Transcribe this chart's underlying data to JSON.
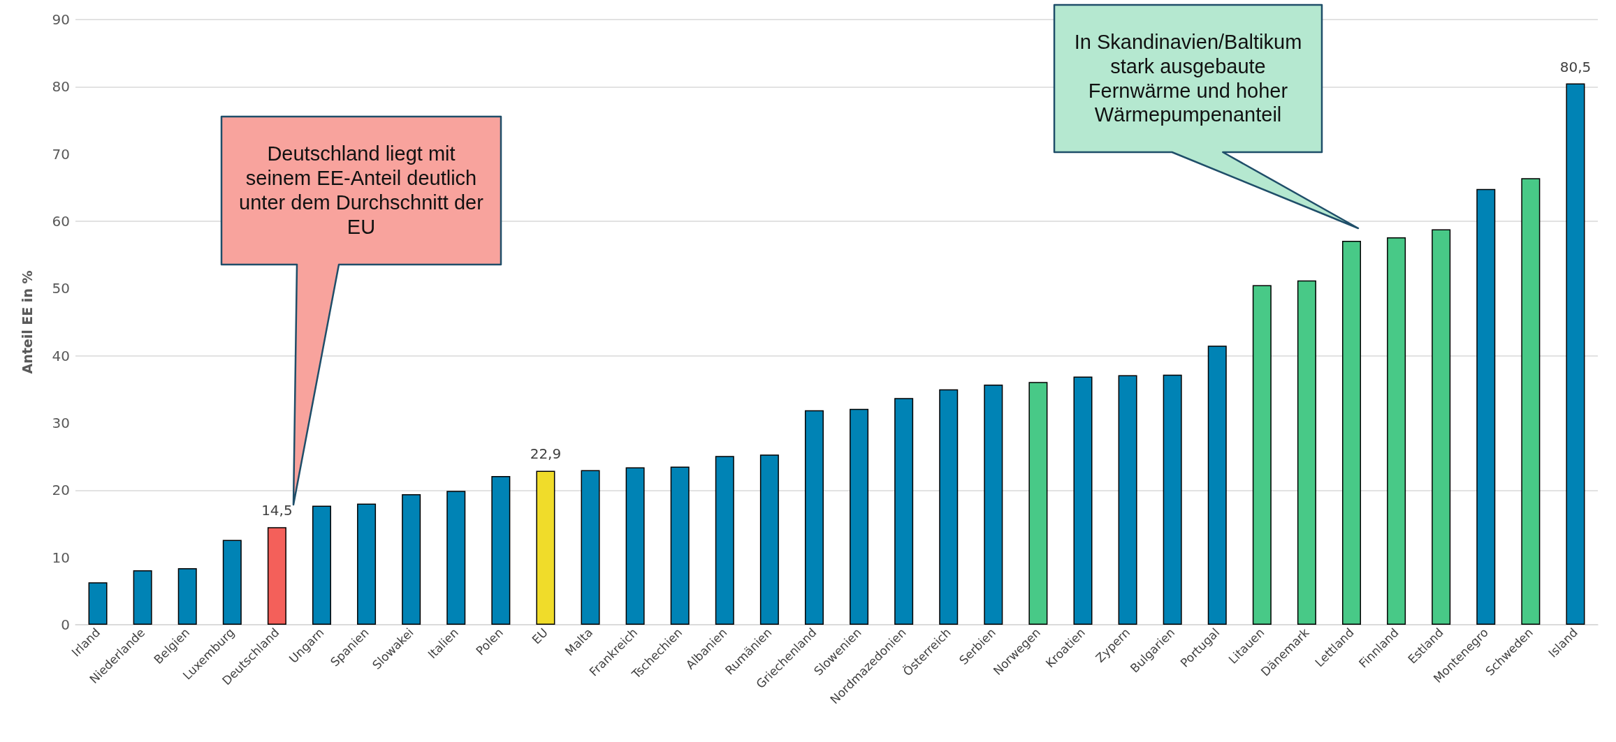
{
  "chart_data": {
    "type": "bar",
    "ylabel": "Anteil EE in %",
    "categories": [
      "Irland",
      "Niederlande",
      "Belgien",
      "Luxemburg",
      "Deutschland",
      "Ungarn",
      "Spanien",
      "Slowakei",
      "Italien",
      "Polen",
      "EU",
      "Malta",
      "Frankreich",
      "Tschechien",
      "Albanien",
      "Rumänien",
      "Griechenland",
      "Slowenien",
      "Nordmazedonien",
      "Österreich",
      "Serbien",
      "Norwegen",
      "Kroatien",
      "Zypern",
      "Bulgarien",
      "Portugal",
      "Litauen",
      "Dänemark",
      "Lettland",
      "Finnland",
      "Estland",
      "Montenegro",
      "Schweden",
      "Island"
    ],
    "values": [
      6.3,
      8.1,
      8.4,
      12.6,
      14.5,
      17.7,
      18.0,
      19.4,
      19.9,
      22.1,
      22.9,
      23.0,
      23.4,
      23.5,
      25.1,
      25.3,
      31.9,
      32.1,
      33.7,
      35.0,
      35.7,
      36.1,
      36.9,
      37.1,
      37.2,
      41.5,
      50.5,
      51.2,
      57.1,
      57.6,
      58.8,
      64.8,
      66.4,
      80.5
    ],
    "value_labels": [
      null,
      null,
      null,
      null,
      "14,5",
      null,
      null,
      null,
      null,
      null,
      "22,9",
      null,
      null,
      null,
      null,
      null,
      null,
      null,
      null,
      null,
      null,
      null,
      null,
      null,
      null,
      null,
      null,
      null,
      null,
      null,
      null,
      null,
      null,
      "80,5"
    ],
    "colors": [
      "#0083b5",
      "#0083b5",
      "#0083b5",
      "#0083b5",
      "#f4605a",
      "#0083b5",
      "#0083b5",
      "#0083b5",
      "#0083b5",
      "#0083b5",
      "#f0dc2a",
      "#0083b5",
      "#0083b5",
      "#0083b5",
      "#0083b5",
      "#0083b5",
      "#0083b5",
      "#0083b5",
      "#0083b5",
      "#0083b5",
      "#0083b5",
      "#48c987",
      "#0083b5",
      "#0083b5",
      "#0083b5",
      "#0083b5",
      "#48c987",
      "#48c987",
      "#48c987",
      "#48c987",
      "#48c987",
      "#0083b5",
      "#48c987",
      "#0083b5"
    ],
    "ylim": [
      0,
      90
    ],
    "yticks": [
      0,
      10,
      20,
      30,
      40,
      50,
      60,
      70,
      80,
      90
    ],
    "grid": "y",
    "annotations": [
      "Deutschland liegt mit seinem EE-Anteil deutlich unter dem Durchschnitt der EU",
      "In Skandinavien/Baltikum stark ausgebaute Fernwärme und hoher Wärmepumpenanteil"
    ]
  }
}
